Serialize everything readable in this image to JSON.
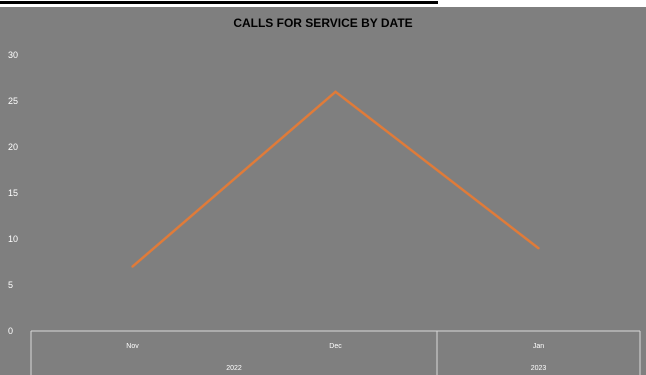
{
  "chart_data": {
    "type": "line",
    "title": "CALLS FOR SERVICE BY DATE",
    "categories": [
      "Nov",
      "Dec",
      "Jan"
    ],
    "groups": [
      {
        "label": "2022",
        "categories": [
          "Nov",
          "Dec"
        ]
      },
      {
        "label": "2023",
        "categories": [
          "Jan"
        ]
      }
    ],
    "series": [
      {
        "values": [
          7,
          26,
          9
        ],
        "color": "#e07b39"
      }
    ],
    "ylim": [
      0,
      30
    ],
    "yticks": [
      0,
      5,
      10,
      15,
      20,
      25,
      30
    ],
    "xlabel": "",
    "ylabel": "",
    "grid": false,
    "legend": "none",
    "colors": {
      "background": "#7f7f7f",
      "axis": "#d9d9d9",
      "text": "#ffffff",
      "title": "#000000"
    }
  }
}
